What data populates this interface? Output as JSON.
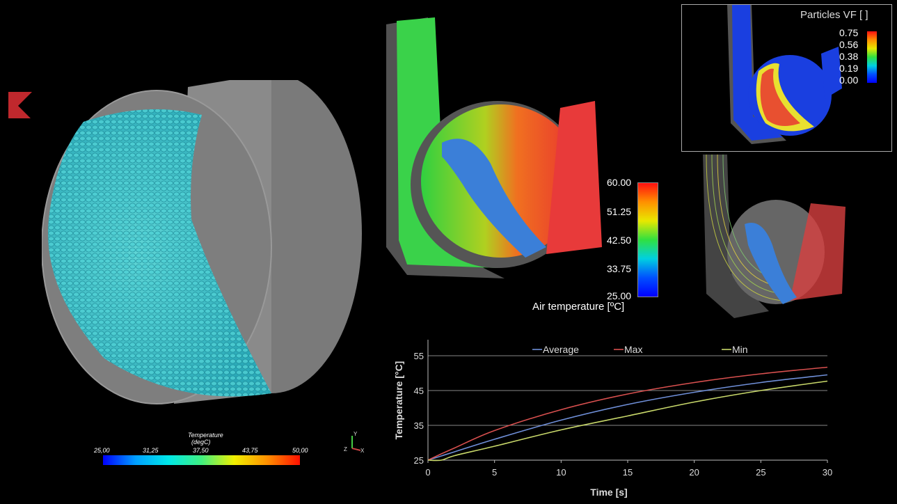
{
  "particle_colorbar": {
    "title": "Temperature",
    "unit": "(degC)",
    "ticks": [
      "25,00",
      "31,25",
      "37,50",
      "43,75",
      "50,00"
    ]
  },
  "axes_triad": {
    "y": "Y",
    "z": "Z",
    "x": "X"
  },
  "air_colorbar": {
    "title": "Air temperature [ºC]",
    "ticks": [
      "60.00",
      "51.25",
      "42.50",
      "33.75",
      "25.00"
    ]
  },
  "particles_vf_colorbar": {
    "title": "Particles VF [ ]",
    "ticks": [
      "0.75",
      "0.56",
      "0.38",
      "0.19",
      "0.00"
    ]
  },
  "colors": {
    "average": "#6f8fd8",
    "max": "#d9504f",
    "min": "#c8d86a",
    "logo": "#c0282d"
  },
  "chart_data": {
    "type": "line",
    "xlabel": "Time [s]",
    "ylabel": "Temperature [°C]",
    "xlim": [
      0,
      30
    ],
    "ylim": [
      25,
      59
    ],
    "xticks": [
      "0",
      "5",
      "10",
      "15",
      "20",
      "25",
      "30"
    ],
    "yticks": [
      "25",
      "35",
      "45",
      "55"
    ],
    "grid": "horizontal",
    "legend": "top",
    "x": [
      0,
      1,
      2,
      5,
      10,
      15,
      20,
      25,
      30
    ],
    "series": [
      {
        "name": "Average",
        "values": [
          25,
          26.2,
          27.4,
          31,
          36.5,
          41,
          44.5,
          47.3,
          49.5
        ]
      },
      {
        "name": "Max",
        "values": [
          25,
          26.8,
          28.5,
          33.5,
          39.5,
          44,
          47.3,
          49.8,
          51.7
        ]
      },
      {
        "name": "Min",
        "values": [
          25,
          25,
          26.3,
          29,
          33.7,
          37.7,
          41.7,
          45,
          47.7
        ]
      }
    ]
  }
}
